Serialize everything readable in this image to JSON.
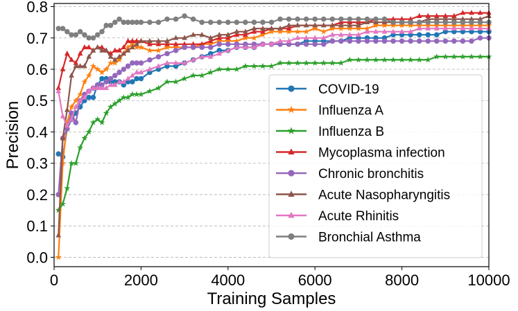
{
  "chart_data": {
    "type": "line",
    "title": "",
    "xlabel": "Training Samples",
    "ylabel": "Precision",
    "xlim": [
      0,
      10000
    ],
    "ylim": [
      -0.03,
      0.81
    ],
    "xticks": [
      0,
      2000,
      4000,
      6000,
      8000,
      10000
    ],
    "xtick_labels": [
      "0",
      "2000",
      "4000",
      "6000",
      "8000",
      "10000"
    ],
    "yticks": [
      0.0,
      0.1,
      0.2,
      0.3,
      0.4,
      0.5,
      0.6,
      0.7,
      0.8
    ],
    "ytick_labels": [
      "0.0",
      "0.1",
      "0.2",
      "0.3",
      "0.4",
      "0.5",
      "0.6",
      "0.7",
      "0.8"
    ],
    "grid": "horizontal dashed",
    "legend_position": "bottom-right",
    "series": [
      {
        "name": "COVID-19",
        "color": "#1f77b4",
        "marker": "circle",
        "x": [
          100,
          200,
          300,
          400,
          500,
          600,
          700,
          800,
          900,
          1000,
          1100,
          1200,
          1300,
          1400,
          1500,
          1600,
          1700,
          1800,
          1900,
          2000,
          2200,
          2400,
          2600,
          2800,
          3000,
          3200,
          3400,
          3600,
          3800,
          4000,
          4200,
          4400,
          4600,
          4800,
          5000,
          5200,
          5400,
          5600,
          5800,
          6000,
          6200,
          6400,
          6600,
          6800,
          7000,
          7200,
          7400,
          7600,
          7800,
          8000,
          8200,
          8400,
          8600,
          8800,
          9000,
          9200,
          9400,
          9600,
          9800,
          10000
        ],
        "y": [
          0.33,
          0.32,
          0.41,
          0.44,
          0.46,
          0.48,
          0.5,
          0.51,
          0.51,
          0.55,
          0.57,
          0.57,
          0.56,
          0.56,
          0.56,
          0.55,
          0.56,
          0.56,
          0.57,
          0.57,
          0.59,
          0.6,
          0.61,
          0.61,
          0.62,
          0.63,
          0.64,
          0.65,
          0.66,
          0.66,
          0.67,
          0.67,
          0.67,
          0.68,
          0.68,
          0.68,
          0.68,
          0.68,
          0.69,
          0.69,
          0.69,
          0.69,
          0.69,
          0.7,
          0.7,
          0.7,
          0.7,
          0.7,
          0.71,
          0.71,
          0.71,
          0.71,
          0.71,
          0.71,
          0.72,
          0.72,
          0.72,
          0.72,
          0.72,
          0.72
        ]
      },
      {
        "name": "Influenza A",
        "color": "#ff7f0e",
        "marker": "star",
        "x": [
          100,
          200,
          300,
          400,
          500,
          600,
          700,
          800,
          900,
          1000,
          1100,
          1200,
          1300,
          1400,
          1500,
          1600,
          1700,
          1800,
          1900,
          2000,
          2200,
          2400,
          2600,
          2800,
          3000,
          3200,
          3400,
          3600,
          3800,
          4000,
          4200,
          4400,
          4600,
          4800,
          5000,
          5200,
          5400,
          5600,
          5800,
          6000,
          6200,
          6400,
          6600,
          6800,
          7000,
          7200,
          7400,
          7600,
          7800,
          8000,
          8200,
          8400,
          8600,
          8800,
          9000,
          9200,
          9400,
          9600,
          9800,
          10000
        ],
        "y": [
          0.0,
          0.3,
          0.43,
          0.48,
          0.5,
          0.52,
          0.56,
          0.58,
          0.61,
          0.6,
          0.59,
          0.6,
          0.62,
          0.62,
          0.63,
          0.65,
          0.67,
          0.68,
          0.67,
          0.67,
          0.66,
          0.66,
          0.67,
          0.67,
          0.67,
          0.67,
          0.68,
          0.68,
          0.69,
          0.69,
          0.69,
          0.7,
          0.7,
          0.71,
          0.72,
          0.72,
          0.72,
          0.72,
          0.72,
          0.73,
          0.72,
          0.73,
          0.73,
          0.73,
          0.73,
          0.73,
          0.74,
          0.74,
          0.74,
          0.74,
          0.74,
          0.74,
          0.74,
          0.74,
          0.74,
          0.74,
          0.74,
          0.74,
          0.74,
          0.74
        ]
      },
      {
        "name": "Influenza B",
        "color": "#2ca02c",
        "marker": "star",
        "x": [
          100,
          200,
          300,
          400,
          500,
          600,
          700,
          800,
          900,
          1000,
          1100,
          1200,
          1300,
          1400,
          1500,
          1600,
          1700,
          1800,
          1900,
          2000,
          2200,
          2400,
          2600,
          2800,
          3000,
          3200,
          3400,
          3600,
          3800,
          4000,
          4200,
          4400,
          4600,
          4800,
          5000,
          5200,
          5400,
          5600,
          5800,
          6000,
          6200,
          6400,
          6600,
          6800,
          7000,
          7200,
          7400,
          7600,
          7800,
          8000,
          8200,
          8400,
          8600,
          8800,
          9000,
          9200,
          9400,
          9600,
          9800,
          10000
        ],
        "y": [
          0.15,
          0.17,
          0.22,
          0.3,
          0.3,
          0.35,
          0.38,
          0.4,
          0.43,
          0.44,
          0.43,
          0.46,
          0.48,
          0.49,
          0.5,
          0.51,
          0.51,
          0.52,
          0.52,
          0.52,
          0.53,
          0.54,
          0.56,
          0.56,
          0.57,
          0.58,
          0.58,
          0.59,
          0.6,
          0.6,
          0.6,
          0.61,
          0.61,
          0.61,
          0.61,
          0.62,
          0.62,
          0.62,
          0.62,
          0.62,
          0.62,
          0.62,
          0.62,
          0.63,
          0.63,
          0.63,
          0.63,
          0.63,
          0.63,
          0.63,
          0.63,
          0.63,
          0.63,
          0.64,
          0.64,
          0.64,
          0.64,
          0.64,
          0.64,
          0.64
        ]
      },
      {
        "name": "Mycoplasma infection",
        "color": "#d62728",
        "marker": "triangle",
        "x": [
          100,
          200,
          300,
          400,
          500,
          600,
          700,
          800,
          900,
          1000,
          1100,
          1200,
          1300,
          1400,
          1500,
          1600,
          1700,
          1800,
          1900,
          2000,
          2200,
          2400,
          2600,
          2800,
          3000,
          3200,
          3400,
          3600,
          3800,
          4000,
          4200,
          4400,
          4600,
          4800,
          5000,
          5200,
          5400,
          5600,
          5800,
          6000,
          6200,
          6400,
          6600,
          6800,
          7000,
          7200,
          7400,
          7600,
          7800,
          8000,
          8200,
          8400,
          8600,
          8800,
          9000,
          9200,
          9400,
          9600,
          9800,
          10000
        ],
        "y": [
          0.54,
          0.6,
          0.65,
          0.63,
          0.62,
          0.65,
          0.67,
          0.67,
          0.66,
          0.67,
          0.67,
          0.66,
          0.65,
          0.66,
          0.66,
          0.67,
          0.69,
          0.69,
          0.69,
          0.69,
          0.68,
          0.68,
          0.68,
          0.68,
          0.68,
          0.68,
          0.68,
          0.69,
          0.7,
          0.7,
          0.71,
          0.71,
          0.72,
          0.72,
          0.73,
          0.73,
          0.73,
          0.74,
          0.74,
          0.74,
          0.74,
          0.74,
          0.75,
          0.75,
          0.75,
          0.75,
          0.76,
          0.76,
          0.76,
          0.76,
          0.76,
          0.77,
          0.77,
          0.77,
          0.77,
          0.77,
          0.78,
          0.78,
          0.78,
          0.78
        ]
      },
      {
        "name": "Chronic bronchitis",
        "color": "#9467bd",
        "marker": "circle",
        "x": [
          100,
          200,
          300,
          400,
          500,
          600,
          700,
          800,
          900,
          1000,
          1100,
          1200,
          1300,
          1400,
          1500,
          1600,
          1700,
          1800,
          1900,
          2000,
          2200,
          2400,
          2600,
          2800,
          3000,
          3200,
          3400,
          3600,
          3800,
          4000,
          4200,
          4400,
          4600,
          4800,
          5000,
          5200,
          5400,
          5600,
          5800,
          6000,
          6200,
          6400,
          6600,
          6800,
          7000,
          7200,
          7400,
          7600,
          7800,
          8000,
          8200,
          8400,
          8600,
          8800,
          9000,
          9200,
          9400,
          9600,
          9800,
          10000
        ],
        "y": [
          0.2,
          0.38,
          0.41,
          0.46,
          0.43,
          0.5,
          0.52,
          0.53,
          0.54,
          0.55,
          0.55,
          0.56,
          0.57,
          0.58,
          0.59,
          0.6,
          0.61,
          0.62,
          0.62,
          0.62,
          0.63,
          0.64,
          0.65,
          0.66,
          0.67,
          0.67,
          0.67,
          0.67,
          0.68,
          0.68,
          0.68,
          0.68,
          0.68,
          0.68,
          0.68,
          0.68,
          0.68,
          0.68,
          0.68,
          0.68,
          0.68,
          0.69,
          0.69,
          0.69,
          0.69,
          0.69,
          0.69,
          0.69,
          0.69,
          0.69,
          0.69,
          0.69,
          0.69,
          0.69,
          0.69,
          0.69,
          0.69,
          0.69,
          0.7,
          0.7
        ]
      },
      {
        "name": "Acute Nasopharyngitis",
        "color": "#8c564b",
        "marker": "triangle",
        "x": [
          100,
          200,
          300,
          400,
          500,
          600,
          700,
          800,
          900,
          1000,
          1100,
          1200,
          1300,
          1400,
          1500,
          1600,
          1700,
          1800,
          1900,
          2000,
          2200,
          2400,
          2600,
          2800,
          3000,
          3200,
          3400,
          3600,
          3800,
          4000,
          4200,
          4400,
          4600,
          4800,
          5000,
          5200,
          5400,
          5600,
          5800,
          6000,
          6200,
          6400,
          6600,
          6800,
          7000,
          7200,
          7400,
          7600,
          7800,
          8000,
          8200,
          8400,
          8600,
          8800,
          9000,
          9200,
          9400,
          9600,
          9800,
          10000
        ],
        "y": [
          0.07,
          0.38,
          0.47,
          0.58,
          0.61,
          0.61,
          0.61,
          0.64,
          0.66,
          0.67,
          0.66,
          0.66,
          0.64,
          0.63,
          0.64,
          0.65,
          0.66,
          0.67,
          0.68,
          0.69,
          0.69,
          0.69,
          0.69,
          0.7,
          0.7,
          0.71,
          0.71,
          0.7,
          0.71,
          0.71,
          0.72,
          0.72,
          0.73,
          0.73,
          0.73,
          0.73,
          0.74,
          0.74,
          0.74,
          0.74,
          0.74,
          0.74,
          0.74,
          0.74,
          0.74,
          0.75,
          0.75,
          0.75,
          0.75,
          0.75,
          0.75,
          0.75,
          0.76,
          0.76,
          0.76,
          0.76,
          0.76,
          0.76,
          0.76,
          0.77
        ]
      },
      {
        "name": "Acute Rhinitis",
        "color": "#e377c2",
        "marker": "triangle",
        "x": [
          100,
          200,
          300,
          400,
          500,
          600,
          700,
          800,
          900,
          1000,
          1100,
          1200,
          1300,
          1400,
          1500,
          1600,
          1700,
          1800,
          1900,
          2000,
          2200,
          2400,
          2600,
          2800,
          3000,
          3200,
          3400,
          3600,
          3800,
          4000,
          4200,
          4400,
          4600,
          4800,
          5000,
          5200,
          5400,
          5600,
          5800,
          6000,
          6200,
          6400,
          6600,
          6800,
          7000,
          7200,
          7400,
          7600,
          7800,
          8000,
          8200,
          8400,
          8600,
          8800,
          9000,
          9200,
          9400,
          9600,
          9800,
          10000
        ],
        "y": [
          0.53,
          0.45,
          0.42,
          0.44,
          0.48,
          0.5,
          0.51,
          0.53,
          0.54,
          0.54,
          0.54,
          0.54,
          0.55,
          0.55,
          0.56,
          0.56,
          0.57,
          0.58,
          0.59,
          0.59,
          0.6,
          0.61,
          0.62,
          0.62,
          0.62,
          0.63,
          0.64,
          0.64,
          0.65,
          0.66,
          0.67,
          0.67,
          0.67,
          0.68,
          0.68,
          0.69,
          0.69,
          0.7,
          0.7,
          0.7,
          0.7,
          0.71,
          0.71,
          0.71,
          0.71,
          0.72,
          0.72,
          0.72,
          0.72,
          0.72,
          0.72,
          0.73,
          0.73,
          0.73,
          0.73,
          0.73,
          0.73,
          0.73,
          0.73,
          0.73
        ]
      },
      {
        "name": "Bronchial Asthma",
        "color": "#7f7f7f",
        "marker": "circle",
        "x": [
          100,
          200,
          300,
          400,
          500,
          600,
          700,
          800,
          900,
          1000,
          1100,
          1200,
          1300,
          1400,
          1500,
          1600,
          1700,
          1800,
          1900,
          2000,
          2200,
          2400,
          2600,
          2800,
          3000,
          3200,
          3400,
          3600,
          3800,
          4000,
          4200,
          4400,
          4600,
          4800,
          5000,
          5200,
          5400,
          5600,
          5800,
          6000,
          6200,
          6400,
          6600,
          6800,
          7000,
          7200,
          7400,
          7600,
          7800,
          8000,
          8200,
          8400,
          8600,
          8800,
          9000,
          9200,
          9400,
          9600,
          9800,
          10000
        ],
        "y": [
          0.73,
          0.73,
          0.72,
          0.71,
          0.71,
          0.72,
          0.71,
          0.7,
          0.7,
          0.71,
          0.72,
          0.74,
          0.74,
          0.75,
          0.76,
          0.75,
          0.75,
          0.75,
          0.75,
          0.75,
          0.75,
          0.75,
          0.76,
          0.76,
          0.77,
          0.76,
          0.75,
          0.75,
          0.75,
          0.75,
          0.75,
          0.75,
          0.75,
          0.75,
          0.75,
          0.76,
          0.76,
          0.76,
          0.76,
          0.76,
          0.76,
          0.76,
          0.76,
          0.76,
          0.76,
          0.76,
          0.76,
          0.76,
          0.75,
          0.75,
          0.75,
          0.75,
          0.75,
          0.75,
          0.75,
          0.75,
          0.75,
          0.75,
          0.75,
          0.75
        ]
      }
    ]
  }
}
